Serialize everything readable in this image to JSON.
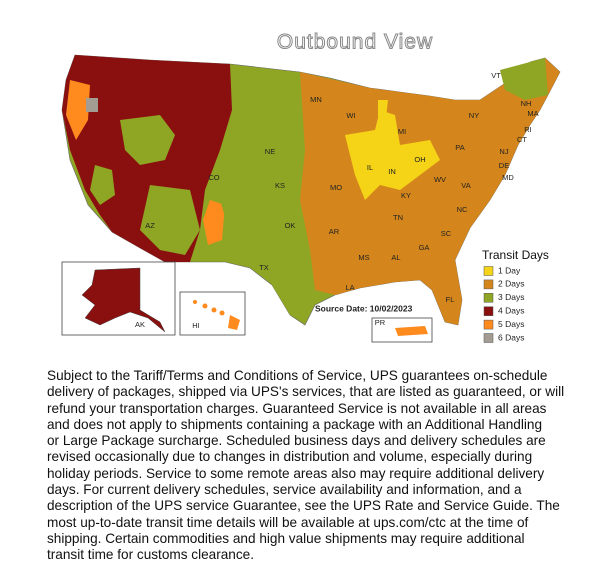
{
  "map": {
    "title": "Outbound View",
    "state_labels": [
      "VT",
      "NH",
      "MA",
      "RI",
      "CT",
      "NJ",
      "DE",
      "MD",
      "NY",
      "PA",
      "OH",
      "MI",
      "WI",
      "MN",
      "IL",
      "IN",
      "KY",
      "WV",
      "VA",
      "NC",
      "TN",
      "SC",
      "GA",
      "AL",
      "MS",
      "FL",
      "LA",
      "AR",
      "MO",
      "OK",
      "KS",
      "NE",
      "CO",
      "AZ",
      "TX",
      "AK",
      "HI",
      "PR"
    ],
    "source_date": "Source Date: 10/02/2023",
    "legend": {
      "title": "Transit Days",
      "items": [
        {
          "label": "1 Day",
          "color": "#f5d316"
        },
        {
          "label": "2 Days",
          "color": "#d4861c"
        },
        {
          "label": "3 Days",
          "color": "#8fa524"
        },
        {
          "label": "4 Days",
          "color": "#8a1010"
        },
        {
          "label": "5 Days",
          "color": "#ff8a1e"
        },
        {
          "label": "6 Days",
          "color": "#a39c92"
        }
      ]
    }
  },
  "disclaimer": {
    "lines": [
      "Subject to the Tariff/Terms and Conditions of Service, UPS guarantees on-schedule",
      "delivery of packages, shipped via UPS's services, that are listed as guaranteed, or will",
      "refund your transportation charges. Guaranteed Service is not available in all areas",
      "and does not apply to shipments containing a package with an Additional Handling",
      "or Large Package surcharge. Scheduled business days and delivery schedules are",
      "revised occasionally due to changes in distribution and volume, especially during",
      "holiday periods. Service to some remote areas also may require additional delivery",
      "days. For current delivery schedules, service availability and information, and a",
      "description of the UPS service Guarantee, see the UPS Rate and Service Guide. The",
      "most up-to-date transit time details will be available at ups.com/ctc at the time of",
      "shipping. Certain commodities and high value shipments may require additional",
      "transit time for customs clearance."
    ]
  }
}
